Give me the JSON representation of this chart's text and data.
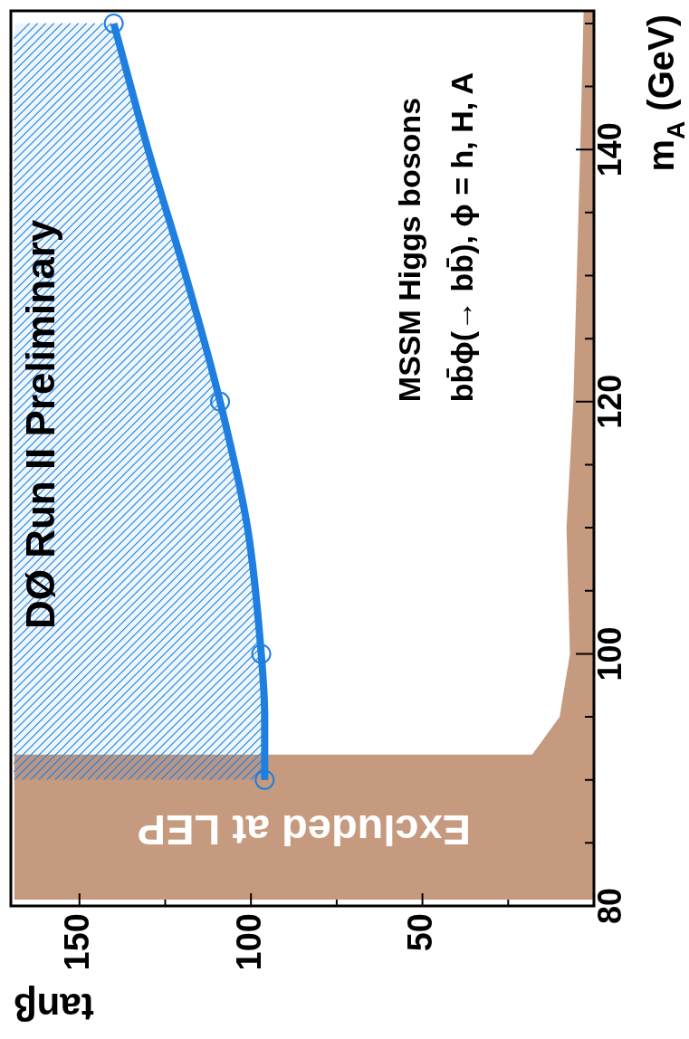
{
  "chart_data": {
    "type": "line",
    "orientation": "horizontal",
    "title": "DØ Run II Preliminary",
    "xlabel": "tanβ",
    "ylabel": "m$_{A}$ (GeV)",
    "annotations": [
      "MSSM Higgs bosons",
      "bb̄ϕ(→ bb̄), ϕ = h, H, A"
    ],
    "xlim": [
      170,
      0
    ],
    "xticks": [
      150,
      {
        "value": 125,
        "label": null
      },
      100,
      {
        "value": 75,
        "label": null
      },
      50,
      {
        "value": 25,
        "label": null
      }
    ],
    "ylim": [
      80,
      151
    ],
    "yticks": [
      80,
      {
        "value": 85,
        "label": null
      },
      {
        "value": 90,
        "label": null
      },
      {
        "value": 95,
        "label": null
      },
      100,
      {
        "value": 105,
        "label": null
      },
      {
        "value": 110,
        "label": null
      },
      {
        "value": 115,
        "label": null
      },
      120,
      {
        "value": 125,
        "label": null
      },
      {
        "value": 130,
        "label": null
      },
      {
        "value": 135,
        "label": null
      },
      140,
      {
        "value": 145,
        "label": null
      },
      {
        "value": 150,
        "label": null
      }
    ],
    "series": [
      {
        "name": "Excluded at LEP",
        "type": "area",
        "color": "#c69a7e",
        "x": [
          80.5,
          92,
          92,
          95,
          100,
          110,
          120,
          140,
          151
        ],
        "values": [
          169,
          169,
          18,
          10,
          7,
          8,
          6,
          4,
          3
        ]
      },
      {
        "type": "line",
        "color": "#1e7fe0",
        "marker": "none",
        "x": [
          90,
          95,
          100,
          110,
          120,
          130,
          140,
          150
        ],
        "values": [
          96,
          96,
          97,
          101,
          109,
          119,
          130,
          140
        ],
        "lower": [
          96,
          96,
          97,
          101,
          109,
          119,
          130,
          140
        ],
        "upper": [
          169,
          169,
          169,
          169,
          169,
          169,
          169,
          169
        ]
      },
      {
        "type": "scatter",
        "color": "#1e7fe0",
        "marker": "circle",
        "x": [
          90,
          100,
          120,
          150
        ],
        "values": [
          96,
          97,
          109,
          140
        ]
      }
    ]
  }
}
